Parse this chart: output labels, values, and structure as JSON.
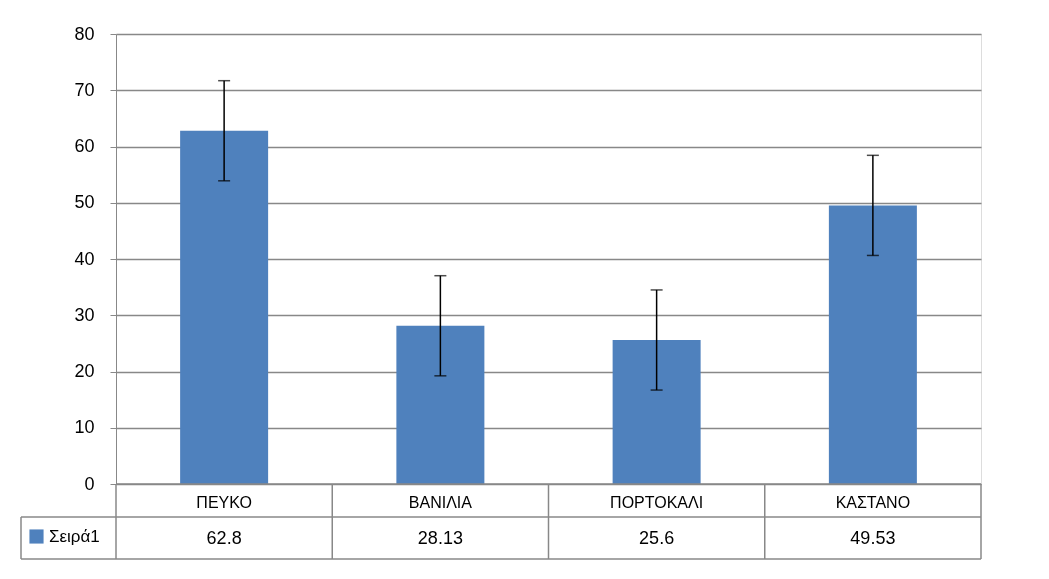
{
  "chart_data": {
    "type": "bar",
    "categories": [
      "ΠΕΥΚΟ",
      "ΒΑΝΙΛΙΑ",
      "ΠΟΡΤΟΚΑΛΙ",
      "ΚΑΣΤΑΝΟ"
    ],
    "series": [
      {
        "name": "Σειρά1",
        "color": "#4f81bd",
        "values": [
          62.8,
          28.13,
          25.6,
          49.53
        ],
        "errors": [
          8.9,
          8.9,
          8.9,
          8.9
        ]
      }
    ],
    "ylim": [
      0,
      80
    ],
    "yticks": [
      0,
      10,
      20,
      30,
      40,
      50,
      60,
      70,
      80
    ],
    "grid": "y",
    "legend": "bottom",
    "data_labels": true
  }
}
